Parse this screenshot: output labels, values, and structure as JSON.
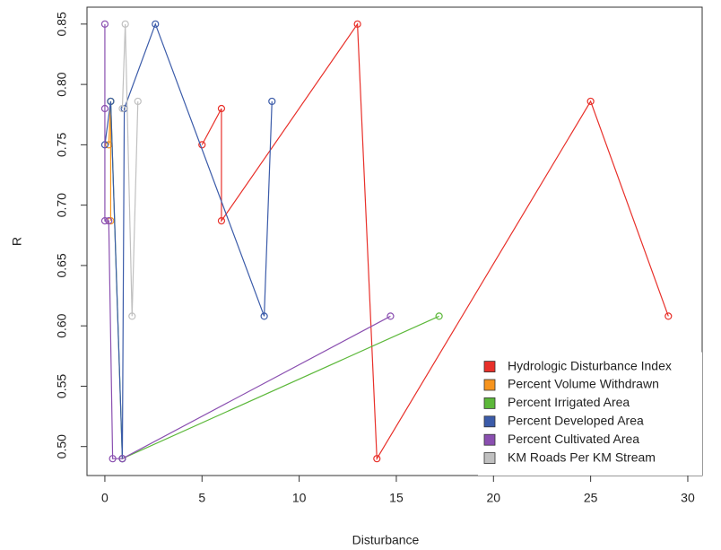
{
  "chart_data": {
    "type": "line",
    "x_label": "Disturbance",
    "y_label": "R",
    "xlim": [
      -0.92,
      30.74
    ],
    "ylim": [
      0.476,
      0.864
    ],
    "xticks": [
      0,
      5,
      10,
      15,
      20,
      25,
      30
    ],
    "yticks": [
      {
        "value": 0.5,
        "label": "0.50"
      },
      0.55,
      {
        "value": 0.6,
        "label": "0.60"
      },
      0.65,
      {
        "value": 0.7,
        "label": "0.70"
      },
      0.75,
      {
        "value": 0.8,
        "label": "0.80"
      },
      0.85
    ],
    "legend": "bottomright",
    "series": [
      {
        "name": "Hydrologic Disturbance Index",
        "color": "#e8302a",
        "x": [
          5,
          6,
          6,
          13,
          14,
          25,
          29
        ],
        "values": [
          0.75,
          0.78,
          0.687,
          0.85,
          0.49,
          0.786,
          0.608
        ]
      },
      {
        "name": "Percent Volume Withdrawn",
        "color": "#f7941d",
        "x": [
          0.2,
          0.3,
          0.3
        ],
        "values": [
          0.75,
          0.786,
          0.687
        ]
      },
      {
        "name": "Percent Irrigated Area",
        "color": "#5cb83a",
        "x": [
          0.3,
          0.9,
          17.2
        ],
        "values": [
          0.786,
          0.49,
          0.608
        ]
      },
      {
        "name": "Percent Developed Area",
        "color": "#3b5ba9",
        "x": [
          0,
          0.3,
          0.9,
          1,
          2.6,
          8.2,
          8.6
        ],
        "values": [
          0.75,
          0.786,
          0.49,
          0.78,
          0.85,
          0.608,
          0.786
        ]
      },
      {
        "name": "Percent Cultivated Area",
        "color": "#8a4fb0",
        "x": [
          0,
          0,
          0,
          0.2,
          0.4,
          0.9,
          14.7
        ],
        "values": [
          0.85,
          0.78,
          0.687,
          0.687,
          0.49,
          0.49,
          0.608
        ]
      },
      {
        "name": "KM Roads Per KM Stream",
        "color": "#c0c0c0",
        "x": [
          0.9,
          1.05,
          1.4,
          1.7
        ],
        "values": [
          0.78,
          0.85,
          0.608,
          0.786
        ]
      }
    ]
  }
}
